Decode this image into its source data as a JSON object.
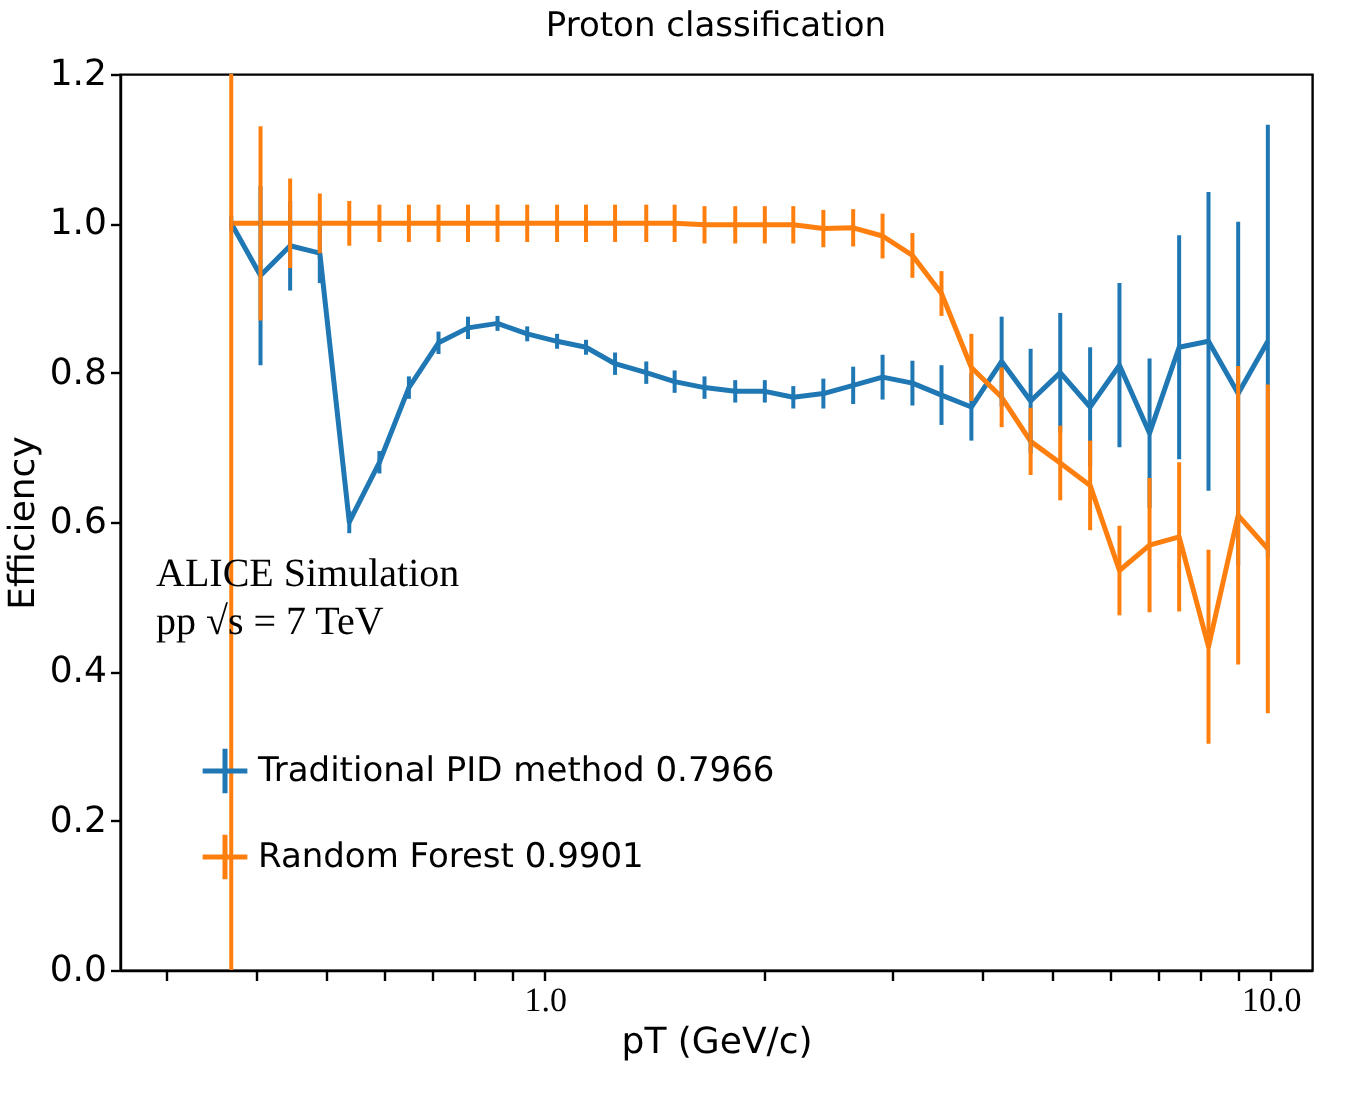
{
  "chart_data": {
    "type": "line",
    "title": "Proton classification",
    "xlabel": "pT (GeV/c)",
    "ylabel": "Efficiency",
    "x": [
      0.37,
      0.406,
      0.446,
      0.49,
      0.538,
      0.592,
      0.65,
      0.714,
      0.784,
      0.861,
      0.946,
      1.04,
      1.14,
      1.25,
      1.38,
      1.51,
      1.66,
      1.83,
      2.01,
      2.2,
      2.42,
      2.66,
      2.92,
      3.21,
      3.52,
      3.87,
      4.26,
      4.67,
      5.13,
      5.64,
      6.19,
      6.81,
      7.48,
      8.21,
      9.02,
      9.91
    ],
    "series": [
      {
        "name": "Traditional PID method 0.7966",
        "color": "#1f77b4",
        "values": [
          1.0,
          0.93,
          0.97,
          0.96,
          0.6,
          0.68,
          0.78,
          0.84,
          0.86,
          0.866,
          0.852,
          0.842,
          0.834,
          0.812,
          0.8,
          0.788,
          0.78,
          0.775,
          0.775,
          0.767,
          0.772,
          0.783,
          0.794,
          0.786,
          0.77,
          0.754,
          0.815,
          0.762,
          0.8,
          0.754,
          0.81,
          0.719,
          0.834,
          0.842,
          0.772,
          0.842
        ],
        "errors": [
          0.01,
          0.12,
          0.06,
          0.04,
          0.015,
          0.015,
          0.015,
          0.015,
          0.015,
          0.01,
          0.01,
          0.01,
          0.01,
          0.015,
          0.015,
          0.015,
          0.015,
          0.015,
          0.015,
          0.015,
          0.02,
          0.025,
          0.03,
          0.03,
          0.04,
          0.045,
          0.06,
          0.07,
          0.08,
          0.08,
          0.11,
          0.1,
          0.15,
          0.2,
          0.23,
          0.29
        ]
      },
      {
        "name": "Random Forest 0.9901",
        "color": "#ff7f0e",
        "values": [
          1.0,
          1.0,
          1.0,
          1.0,
          1.0,
          1.0,
          1.0,
          1.0,
          1.0,
          1.0,
          1.0,
          1.0,
          1.0,
          1.0,
          1.0,
          1.0,
          0.998,
          0.998,
          0.998,
          0.998,
          0.993,
          0.994,
          0.983,
          0.957,
          0.906,
          0.807,
          0.767,
          0.708,
          0.679,
          0.649,
          0.535,
          0.569,
          0.58,
          0.433,
          0.609,
          0.564
        ],
        "errors": [
          [
            0.0,
            1.2
          ],
          0.13,
          0.06,
          0.04,
          0.03,
          0.025,
          0.025,
          0.025,
          0.025,
          0.025,
          0.025,
          0.025,
          0.025,
          0.025,
          0.025,
          0.025,
          0.025,
          0.025,
          0.025,
          0.025,
          0.025,
          0.025,
          0.03,
          0.03,
          0.03,
          0.045,
          0.04,
          0.045,
          0.05,
          0.06,
          0.06,
          0.09,
          0.1,
          0.13,
          0.2,
          0.22
        ]
      }
    ],
    "xlim": [
      0.26,
      11.4
    ],
    "xticks": [
      {
        "value": 0.3,
        "label": null
      },
      {
        "value": 0.4,
        "label": null
      },
      {
        "value": 0.5,
        "label": null
      },
      {
        "value": 0.6,
        "label": null
      },
      {
        "value": 0.7,
        "label": null
      },
      {
        "value": 0.8,
        "label": null
      },
      {
        "value": 0.9,
        "label": null
      },
      {
        "value": 1,
        "label": "1.0"
      },
      {
        "value": 2,
        "label": null
      },
      {
        "value": 3,
        "label": null
      },
      {
        "value": 4,
        "label": null
      },
      {
        "value": 5,
        "label": null
      },
      {
        "value": 6,
        "label": null
      },
      {
        "value": 7,
        "label": null
      },
      {
        "value": 8,
        "label": null
      },
      {
        "value": 9,
        "label": null
      },
      {
        "value": 10,
        "label": "10.0"
      }
    ],
    "ylim": [
      0,
      1.2
    ],
    "yticks": [
      {
        "value": 0,
        "label": "0.0"
      },
      {
        "value": 0.2,
        "label": "0.2"
      },
      {
        "value": 0.4,
        "label": "0.4"
      },
      {
        "value": 0.6,
        "label": "0.6"
      },
      {
        "value": 0.8,
        "label": "0.8"
      },
      {
        "value": 1.0,
        "label": "1.0"
      },
      {
        "value": 1.2,
        "label": "1.2"
      }
    ],
    "log": "x",
    "grid": false,
    "legend": "bottom left",
    "marker": "none",
    "line_style": "solid",
    "annotations": [
      "ALICE Simulation",
      "pp √s = 7 TeV"
    ]
  }
}
